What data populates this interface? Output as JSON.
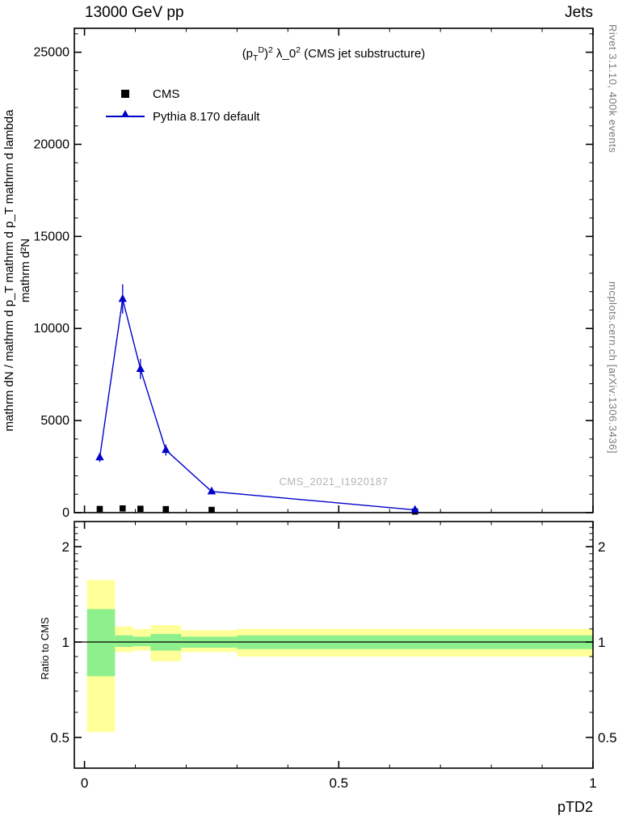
{
  "header": {
    "left": "13000 GeV pp",
    "right": "Jets"
  },
  "title_parts": {
    "p_open": "(p",
    "sub_T": "T",
    "sup_D": "D",
    "close_paren": ")",
    "sup_2a": "2",
    "lambda_mid": " λ_0",
    "sup_2b": "2",
    "suffix": " (CMS jet substructure)"
  },
  "legend": [
    {
      "label": "CMS",
      "marker": "filled-square",
      "color": "#000000"
    },
    {
      "label": "Pythia 8.170 default",
      "marker": "line-with-triangle",
      "color": "#0000cc"
    }
  ],
  "main_panel": {
    "watermark": "CMS_2021_I1920187",
    "ylabel_line_outer": "mathrm dN / mathrm d p_T mathrm d p_T mathrm d lambda",
    "ylabel_line_inner": "mathrm d²N"
  },
  "side_notes": {
    "top": "Rivet 3.1.10,  400k events",
    "bottom": "mcplots.cern.ch [arXiv:1306.3436]"
  },
  "chart_data": {
    "type": "line",
    "title": "(p_T^D)^2 λ_0^2 (CMS jet substructure)",
    "xlabel": "pTD2",
    "xlim": [
      -0.02,
      1.0
    ],
    "xticks": [
      0,
      0.5,
      1
    ],
    "xtick_labels": [
      "0",
      "0.5",
      "1"
    ],
    "x_minor_step": 0.1,
    "main": {
      "yscale": "linear",
      "ylim": [
        0,
        26300
      ],
      "yticks": [
        0,
        5000,
        10000,
        15000,
        20000,
        25000
      ],
      "ytick_labels": [
        "0",
        "5000",
        "10000",
        "15000",
        "20000",
        "25000"
      ],
      "y_minor_step": 1000,
      "series": [
        {
          "name": "CMS",
          "marker": "square",
          "line": false,
          "color": "#000000",
          "x": [
            0.03,
            0.075,
            0.11,
            0.16,
            0.25,
            0.65
          ],
          "y": [
            200,
            230,
            210,
            190,
            150,
            60
          ]
        },
        {
          "name": "Pythia 8.170 default",
          "marker": "triangle",
          "line": true,
          "color": "#0000cc",
          "x": [
            0.03,
            0.075,
            0.11,
            0.16,
            0.25,
            0.65
          ],
          "y": [
            3000,
            11600,
            7800,
            3400,
            1150,
            150
          ],
          "yerr": [
            250,
            800,
            550,
            300,
            150,
            50
          ]
        }
      ]
    },
    "ratio": {
      "ylabel": "Ratio to CMS",
      "yscale": "log",
      "ylim": [
        0.4,
        2.4
      ],
      "yticks": [
        0.5,
        1,
        2
      ],
      "ytick_labels": [
        "0.5",
        "1",
        "2"
      ],
      "unity": 1,
      "band_colors": {
        "outer": "#ffff99",
        "inner": "#8df08c"
      },
      "bands": [
        {
          "x0": 0.005,
          "x1": 0.06,
          "outer": [
            0.52,
            1.57
          ],
          "inner": [
            0.78,
            1.27
          ]
        },
        {
          "x0": 0.06,
          "x1": 0.095,
          "outer": [
            0.93,
            1.12
          ],
          "inner": [
            0.965,
            1.05
          ]
        },
        {
          "x0": 0.095,
          "x1": 0.13,
          "outer": [
            0.94,
            1.1
          ],
          "inner": [
            0.97,
            1.04
          ]
        },
        {
          "x0": 0.13,
          "x1": 0.19,
          "outer": [
            0.87,
            1.13
          ],
          "inner": [
            0.94,
            1.06
          ]
        },
        {
          "x0": 0.19,
          "x1": 0.3,
          "outer": [
            0.93,
            1.09
          ],
          "inner": [
            0.96,
            1.04
          ]
        },
        {
          "x0": 0.3,
          "x1": 1.0,
          "outer": [
            0.9,
            1.1
          ],
          "inner": [
            0.95,
            1.05
          ]
        }
      ]
    }
  }
}
